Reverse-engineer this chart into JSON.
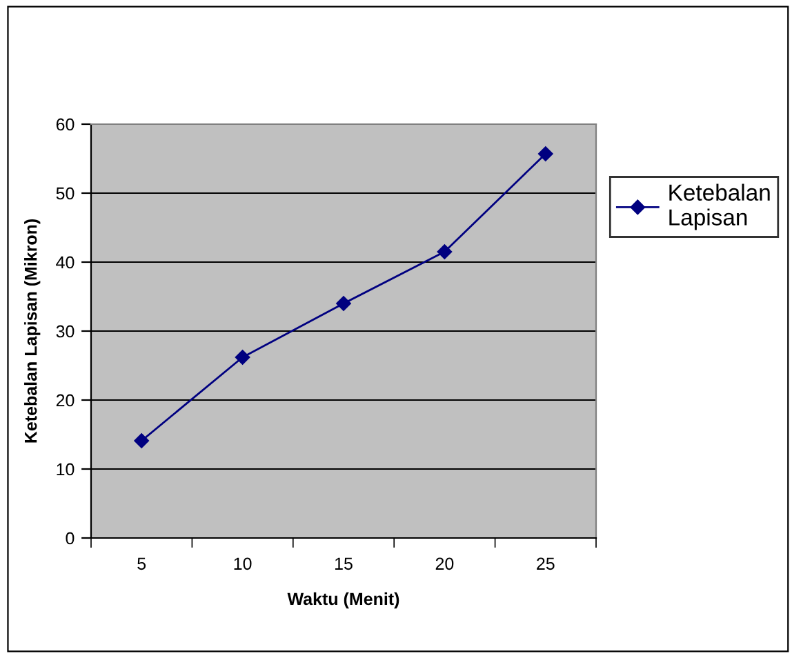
{
  "chart_data": {
    "type": "line",
    "xlabel": "Waktu (Menit)",
    "ylabel": "Ketebalan Lapisan (Mikron)",
    "categories": [
      "5",
      "10",
      "15",
      "20",
      "25"
    ],
    "series": [
      {
        "name": "Ketebalan\nLapisan",
        "color": "#000080",
        "values": [
          14.1,
          26.2,
          34.0,
          41.5,
          55.7
        ]
      }
    ],
    "ylim": [
      0,
      60
    ],
    "yticks": [
      0,
      10,
      20,
      30,
      40,
      50,
      60
    ],
    "grid": "y",
    "legend": "right",
    "marker": "diamond",
    "line_style": "solid"
  }
}
